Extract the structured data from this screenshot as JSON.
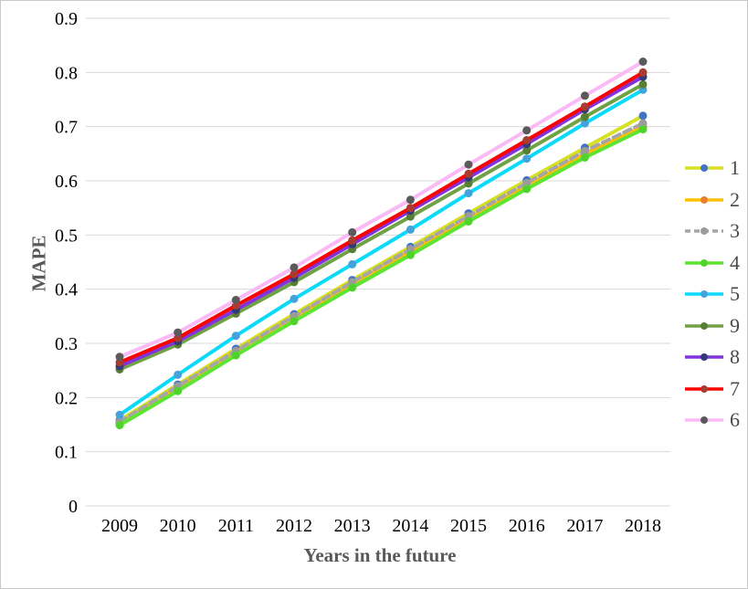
{
  "frame": {
    "background": "#ffffff",
    "border_color": "#c9c9c9",
    "grid_color": "#d9d9d9",
    "tick_label_color": "#000000",
    "axis_title_color": "#595959",
    "legend_text_color": "#4a4a4a"
  },
  "chart_data": {
    "type": "line",
    "title": "",
    "xlabel": "Years in the future",
    "ylabel": "MAPE",
    "x": [
      "2009",
      "2010",
      "2011",
      "2012",
      "2013",
      "2014",
      "2015",
      "2016",
      "2017",
      "2018"
    ],
    "ylim": [
      0,
      0.9
    ],
    "ytick_step": 0.1,
    "grid": "horizontal",
    "legend_position": "right",
    "series": [
      {
        "name": "1",
        "color": "#d7e021",
        "marker_color": "#4472c4",
        "dashed": false,
        "values": [
          0.158,
          0.224,
          0.29,
          0.354,
          0.417,
          0.478,
          0.54,
          0.601,
          0.661,
          0.72
        ]
      },
      {
        "name": "2",
        "color": "#ffc000",
        "marker_color": "#ed7d31",
        "dashed": false,
        "values": [
          0.152,
          0.219,
          0.284,
          0.347,
          0.409,
          0.47,
          0.531,
          0.591,
          0.65,
          0.7
        ]
      },
      {
        "name": "3",
        "color": "#a5a5a5",
        "marker_color": "#9b9b9b",
        "dashed": true,
        "values": [
          0.155,
          0.221,
          0.286,
          0.35,
          0.413,
          0.474,
          0.535,
          0.596,
          0.655,
          0.706
        ]
      },
      {
        "name": "4",
        "color": "#5ee432",
        "marker_color": "#4fd32a",
        "dashed": false,
        "values": [
          0.149,
          0.212,
          0.278,
          0.341,
          0.403,
          0.463,
          0.525,
          0.585,
          0.643,
          0.695
        ]
      },
      {
        "name": "5",
        "color": "#0bd9f9",
        "marker_color": "#44a3da",
        "dashed": false,
        "values": [
          0.168,
          0.242,
          0.314,
          0.382,
          0.446,
          0.51,
          0.577,
          0.641,
          0.706,
          0.768
        ]
      },
      {
        "name": "9",
        "color": "#70a144",
        "marker_color": "#577e33",
        "dashed": false,
        "values": [
          0.252,
          0.298,
          0.355,
          0.413,
          0.474,
          0.534,
          0.595,
          0.656,
          0.718,
          0.778
        ]
      },
      {
        "name": "8",
        "color": "#8133dd",
        "marker_color": "#333a78",
        "dashed": false,
        "values": [
          0.258,
          0.304,
          0.362,
          0.421,
          0.483,
          0.545,
          0.606,
          0.668,
          0.732,
          0.792
        ]
      },
      {
        "name": "7",
        "color": "#fb0300",
        "marker_color": "#a93b31",
        "dashed": false,
        "values": [
          0.265,
          0.31,
          0.37,
          0.428,
          0.49,
          0.55,
          0.613,
          0.675,
          0.737,
          0.8
        ]
      },
      {
        "name": "6",
        "color": "#fbbaf5",
        "marker_color": "#5a5a5a",
        "dashed": false,
        "values": [
          0.275,
          0.32,
          0.38,
          0.44,
          0.505,
          0.565,
          0.63,
          0.693,
          0.757,
          0.82
        ]
      }
    ]
  }
}
